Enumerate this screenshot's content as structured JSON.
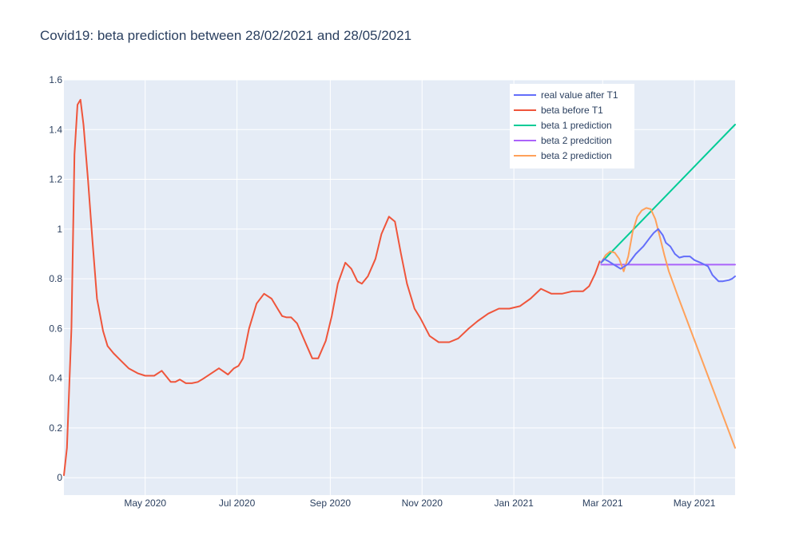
{
  "chart_data": {
    "type": "line",
    "title": "Covid19: beta prediction between 28/02/2021 and 28/05/2021",
    "xlabel": "",
    "ylabel": "",
    "x_axis_type": "date",
    "xlim": [
      "2020-03-08",
      "2021-05-28"
    ],
    "ylim": [
      -0.07,
      1.6
    ],
    "yticks": [
      0,
      0.2,
      0.4,
      0.6,
      0.8,
      1,
      1.2,
      1.4,
      1.6
    ],
    "ytick_labels": [
      "0",
      "0.2",
      "0.4",
      "0.6",
      "0.8",
      "1",
      "1.2",
      "1.4",
      "1.6"
    ],
    "xticks": [
      "2020-05-01",
      "2020-07-01",
      "2020-09-01",
      "2020-11-01",
      "2021-01-01",
      "2021-03-01",
      "2021-05-01"
    ],
    "xtick_labels": [
      "May 2020",
      "Jul 2020",
      "Sep 2020",
      "Nov 2020",
      "Jan 2021",
      "Mar 2021",
      "May 2021"
    ],
    "grid": true,
    "plot_bgcolor": "#e5ecf6",
    "legend": {
      "position": "top-right-inside"
    },
    "series": [
      {
        "name": "real value after T1",
        "color": "#636efa",
        "x": [
          "2021-02-28",
          "2021-03-02",
          "2021-03-05",
          "2021-03-09",
          "2021-03-13",
          "2021-03-18",
          "2021-03-23",
          "2021-03-28",
          "2021-04-02",
          "2021-04-04",
          "2021-04-07",
          "2021-04-10",
          "2021-04-12",
          "2021-04-15",
          "2021-04-18",
          "2021-04-21",
          "2021-04-24",
          "2021-04-28",
          "2021-05-01",
          "2021-05-05",
          "2021-05-10",
          "2021-05-13",
          "2021-05-17",
          "2021-05-20",
          "2021-05-24",
          "2021-05-26",
          "2021-05-28"
        ],
        "y": [
          0.865,
          0.88,
          0.87,
          0.855,
          0.84,
          0.86,
          0.9,
          0.93,
          0.97,
          0.985,
          1.0,
          0.975,
          0.945,
          0.93,
          0.9,
          0.885,
          0.89,
          0.89,
          0.875,
          0.865,
          0.85,
          0.815,
          0.79,
          0.79,
          0.795,
          0.8,
          0.81
        ]
      },
      {
        "name": "beta before T1",
        "color": "#ef553b",
        "x": [
          "2020-03-08",
          "2020-03-10",
          "2020-03-13",
          "2020-03-15",
          "2020-03-17",
          "2020-03-19",
          "2020-03-21",
          "2020-03-24",
          "2020-03-27",
          "2020-03-30",
          "2020-04-03",
          "2020-04-06",
          "2020-04-10",
          "2020-04-15",
          "2020-04-20",
          "2020-04-26",
          "2020-05-01",
          "2020-05-07",
          "2020-05-12",
          "2020-05-18",
          "2020-05-21",
          "2020-05-24",
          "2020-05-28",
          "2020-06-01",
          "2020-06-05",
          "2020-06-09",
          "2020-06-14",
          "2020-06-19",
          "2020-06-25",
          "2020-06-29",
          "2020-07-02",
          "2020-07-05",
          "2020-07-09",
          "2020-07-14",
          "2020-07-19",
          "2020-07-24",
          "2020-07-28",
          "2020-07-31",
          "2020-08-03",
          "2020-08-06",
          "2020-08-10",
          "2020-08-15",
          "2020-08-20",
          "2020-08-24",
          "2020-08-29",
          "2020-09-02",
          "2020-09-06",
          "2020-09-11",
          "2020-09-15",
          "2020-09-19",
          "2020-09-22",
          "2020-09-26",
          "2020-10-01",
          "2020-10-05",
          "2020-10-10",
          "2020-10-14",
          "2020-10-18",
          "2020-10-22",
          "2020-10-27",
          "2020-10-31",
          "2020-11-06",
          "2020-11-12",
          "2020-11-19",
          "2020-11-25",
          "2020-12-02",
          "2020-12-08",
          "2020-12-15",
          "2020-12-22",
          "2020-12-29",
          "2021-01-05",
          "2021-01-12",
          "2021-01-19",
          "2021-01-26",
          "2021-02-02",
          "2021-02-09",
          "2021-02-16",
          "2021-02-20",
          "2021-02-24",
          "2021-02-27"
        ],
        "y": [
          0.01,
          0.12,
          0.6,
          1.3,
          1.5,
          1.52,
          1.42,
          1.2,
          0.95,
          0.72,
          0.59,
          0.53,
          0.5,
          0.47,
          0.44,
          0.42,
          0.41,
          0.41,
          0.43,
          0.385,
          0.385,
          0.395,
          0.38,
          0.38,
          0.385,
          0.4,
          0.42,
          0.44,
          0.415,
          0.44,
          0.45,
          0.48,
          0.6,
          0.7,
          0.74,
          0.72,
          0.68,
          0.65,
          0.645,
          0.645,
          0.62,
          0.55,
          0.48,
          0.48,
          0.55,
          0.65,
          0.78,
          0.865,
          0.84,
          0.79,
          0.78,
          0.81,
          0.88,
          0.98,
          1.05,
          1.03,
          0.9,
          0.78,
          0.68,
          0.64,
          0.57,
          0.545,
          0.545,
          0.56,
          0.6,
          0.63,
          0.66,
          0.68,
          0.68,
          0.69,
          0.72,
          0.76,
          0.74,
          0.74,
          0.75,
          0.75,
          0.77,
          0.82,
          0.87
        ]
      },
      {
        "name": "beta 1 prediction",
        "color": "#00cc96",
        "x": [
          "2021-02-28",
          "2021-05-28"
        ],
        "y": [
          0.865,
          1.42
        ]
      },
      {
        "name": "beta 2 predcition",
        "color": "#ab63fa",
        "x": [
          "2021-02-28",
          "2021-05-28"
        ],
        "y": [
          0.857,
          0.857
        ]
      },
      {
        "name": "beta 2 prediction",
        "color": "#ffa15a",
        "x": [
          "2021-02-28",
          "2021-03-03",
          "2021-03-06",
          "2021-03-09",
          "2021-03-12",
          "2021-03-15",
          "2021-03-18",
          "2021-03-21",
          "2021-03-24",
          "2021-03-27",
          "2021-03-30",
          "2021-04-02",
          "2021-04-05",
          "2021-04-08",
          "2021-04-11",
          "2021-04-14",
          "2021-04-17",
          "2021-04-20",
          "2021-05-28"
        ],
        "y": [
          0.865,
          0.895,
          0.91,
          0.905,
          0.88,
          0.83,
          0.89,
          0.99,
          1.05,
          1.075,
          1.085,
          1.08,
          1.04,
          0.97,
          0.895,
          0.83,
          0.78,
          0.73,
          0.12
        ]
      }
    ]
  }
}
